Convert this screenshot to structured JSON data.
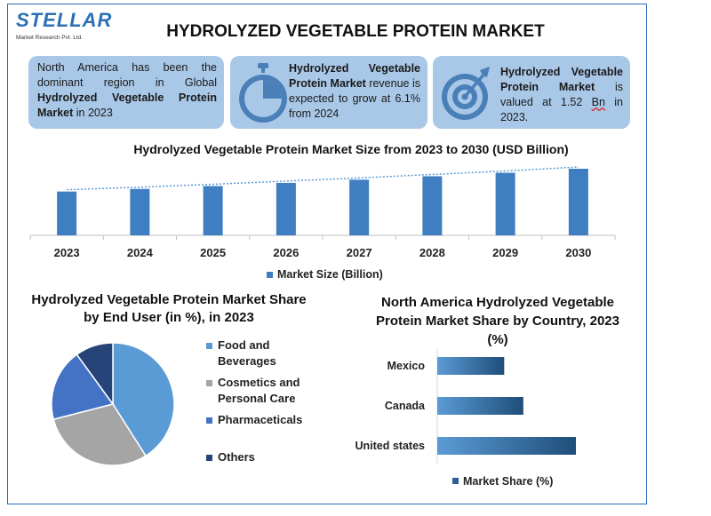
{
  "logo": {
    "word": "STELLAR",
    "sub": "Market Research Pvt. Ltd."
  },
  "title": "HYDROLYZED VEGETABLE PROTEIN MARKET",
  "cards": {
    "c1": {
      "t1": "North America has been the dominant region in Global ",
      "t2": "Hydrolyzed Vegetable Protein Market",
      "t3": " in 2023"
    },
    "c2": {
      "t1": "Hydrolyzed Vegetable Protein Market",
      "t2": " revenue is expected to grow at 6.1% from 2024"
    },
    "c3": {
      "t1": "Hydrolyzed Vegetable Protein Market",
      "t2": " is valued at 1.52 ",
      "t3": "Bn",
      "t4": " in 2023."
    }
  },
  "colors": {
    "dark_blue": "#2a5f96",
    "mid_blue": "#3f7ec1",
    "light_blue": "#5b9bd5",
    "gray": "#a5a5a5",
    "navy": "#264478",
    "card_bg": "#a9c8e8"
  },
  "chart_data": [
    {
      "type": "bar",
      "title": "Hydrolyzed Vegetable Protein Market Size from 2023 to 2030 (USD Billion)",
      "categories": [
        "2023",
        "2024",
        "2025",
        "2026",
        "2027",
        "2028",
        "2029",
        "2030"
      ],
      "series": [
        {
          "name": "Market Size (Billion)",
          "values": [
            1.52,
            1.61,
            1.71,
            1.82,
            1.93,
            2.05,
            2.17,
            2.31
          ]
        }
      ],
      "trendline": true,
      "ylim": [
        0,
        2.31
      ],
      "legend": "bottom"
    },
    {
      "type": "pie",
      "title": "Hydrolyzed Vegetable Protein Market Share by End User (in %), in 2023",
      "categories": [
        "Food and Beverages",
        "Cosmetics and Personal Care",
        "Pharmaceticals",
        "Others"
      ],
      "values": [
        41,
        30,
        19,
        10
      ],
      "colors": [
        "#5b9bd5",
        "#a5a5a5",
        "#4472c4",
        "#264478"
      ],
      "legend": "right"
    },
    {
      "type": "bar",
      "orientation": "horizontal",
      "title": "North America Hydrolyzed Vegetable Protein Market Share by Country, 2023 (%)",
      "categories": [
        "Mexico",
        "Canada",
        "United states"
      ],
      "series": [
        {
          "name": "Market Share (%)",
          "values": [
            14,
            18,
            29
          ]
        }
      ],
      "xlim": [
        0,
        29
      ],
      "legend": "bottom"
    }
  ]
}
